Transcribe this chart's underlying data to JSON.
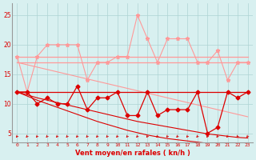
{
  "x": [
    0,
    1,
    2,
    3,
    4,
    5,
    6,
    7,
    8,
    9,
    10,
    11,
    12,
    13,
    14,
    15,
    16,
    17,
    18,
    19,
    20,
    21,
    22,
    23
  ],
  "rafales": [
    18,
    12,
    18,
    20,
    20,
    20,
    20,
    14,
    17,
    17,
    18,
    18,
    25,
    21,
    17,
    21,
    21,
    21,
    17,
    17,
    19,
    14,
    17,
    17
  ],
  "flat_top1": [
    18,
    18,
    18,
    18,
    18,
    18,
    18,
    18,
    18,
    18,
    18,
    18,
    18,
    18,
    18,
    18,
    18,
    18,
    18,
    18,
    18,
    18,
    18,
    18
  ],
  "flat_top2": [
    17,
    17,
    17,
    17,
    17,
    17,
    17,
    17,
    17,
    17,
    17,
    17,
    17,
    17,
    17,
    17,
    17,
    17,
    17,
    17,
    17,
    17,
    17,
    17
  ],
  "trend_light": [
    17.0,
    16.6,
    16.2,
    15.8,
    15.4,
    15.0,
    14.6,
    14.2,
    13.8,
    13.4,
    13.0,
    12.6,
    12.2,
    11.8,
    11.4,
    11.0,
    10.6,
    10.2,
    9.8,
    9.4,
    9.0,
    8.6,
    8.2,
    7.8
  ],
  "vent_moyen": [
    12,
    12,
    10,
    11,
    10,
    10,
    13,
    9,
    11,
    11,
    12,
    8,
    8,
    12,
    8,
    9,
    9,
    9,
    12,
    5,
    6,
    12,
    11,
    12
  ],
  "flat_dark": [
    12,
    12,
    12,
    12,
    12,
    12,
    12,
    12,
    12,
    12,
    12,
    12,
    12,
    12,
    12,
    12,
    12,
    12,
    12,
    12,
    12,
    12,
    12,
    12
  ],
  "trend_dark1": [
    12.0,
    11.5,
    11.0,
    10.6,
    10.2,
    9.8,
    9.4,
    9.0,
    8.6,
    8.2,
    7.8,
    7.4,
    7.0,
    6.7,
    6.4,
    6.1,
    5.8,
    5.5,
    5.2,
    4.9,
    4.7,
    4.5,
    4.3,
    4.2
  ],
  "trend_dark2": [
    12.0,
    11.3,
    10.6,
    10.0,
    9.4,
    8.8,
    8.2,
    7.6,
    7.0,
    6.5,
    6.0,
    5.5,
    5.1,
    4.7,
    4.4,
    4.1,
    3.9,
    3.7,
    3.5,
    3.3,
    3.2,
    3.1,
    3.0,
    2.9
  ],
  "bg_color": "#d8f0f0",
  "grid_color": "#aed4d4",
  "line_dark": "#dd0000",
  "line_light": "#ff9999",
  "xlabel": "Vent moyen/en rafales ( kn/h )",
  "yticks": [
    5,
    10,
    15,
    20,
    25
  ],
  "ylim": [
    3.5,
    27
  ],
  "xlim": [
    -0.5,
    23.5
  ]
}
